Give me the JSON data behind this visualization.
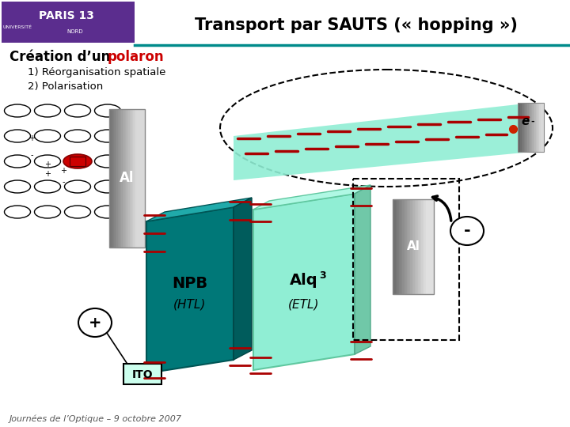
{
  "title": "Transport par SAUTS (« hopping »)",
  "subtitle_black": "Création d’un ",
  "subtitle_red": "polaron",
  "step1": "1) Réorganisation spatiale",
  "step2": "2) Polarisation",
  "footer": "Journées de l’Optique – 9 octobre 2007",
  "label_npb": "NPB",
  "label_htl": "(HTL)",
  "label_alq": "Alq",
  "label_alq_sub": "3",
  "label_etl": "(ETL)",
  "label_ito": "ITO",
  "label_al_left": "Al",
  "label_al_right": "Al",
  "label_plus": "+",
  "label_minus": "-",
  "teal_color": "#008B8B",
  "lightgreen_color": "#90EED4",
  "bg_color": "#FFFFFF",
  "red_dash": "#AA0000"
}
